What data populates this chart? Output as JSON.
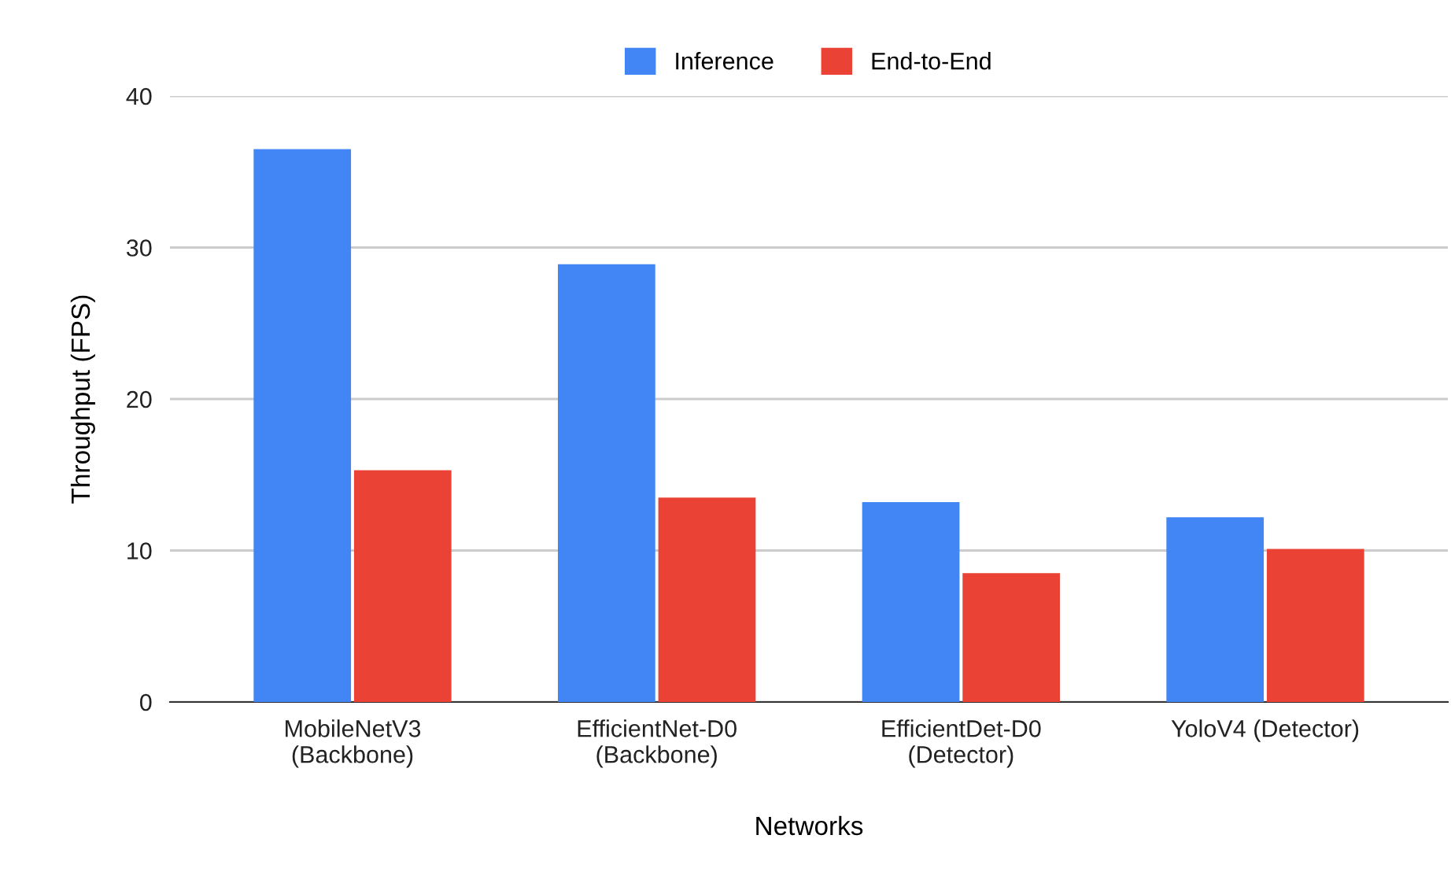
{
  "chart_data": {
    "type": "bar",
    "xlabel": "Networks",
    "ylabel": "Throughput (FPS)",
    "categories": [
      "MobileNetV3\n(Backbone)",
      "EfficientNet-D0\n(Backbone)",
      "EfficientDet-D0\n(Detector)",
      "YoloV4 (Detector)"
    ],
    "series": [
      {
        "name": "Inference",
        "color": "#4285f4",
        "values": [
          36.5,
          28.9,
          13.2,
          12.2
        ]
      },
      {
        "name": "End-to-End",
        "color": "#ea4335",
        "values": [
          15.3,
          13.5,
          8.5,
          10.1
        ]
      }
    ],
    "ylim": [
      0,
      40
    ],
    "yticks": [
      0,
      10,
      20,
      30,
      40
    ],
    "grid": "y",
    "legend": "top"
  }
}
